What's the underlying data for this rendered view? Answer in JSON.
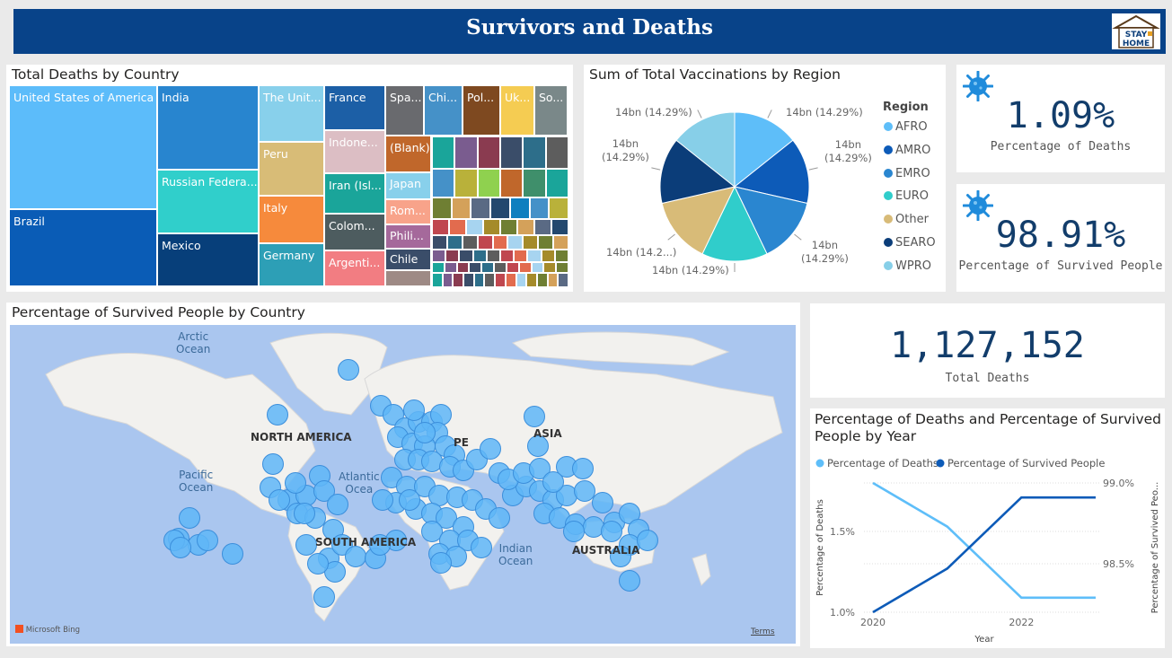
{
  "header": {
    "title": "Survivors and Deaths",
    "logo_text_1": "STAY",
    "logo_text_2": "HOME"
  },
  "colors": {
    "header": "#084389",
    "primary": "#118dff",
    "dark": "#12239e",
    "kpi_text": "#123d6b"
  },
  "treemap": {
    "title": "Total Deaths by Country",
    "labels": {
      "usa": "United States of America",
      "brazil": "Brazil",
      "india": "India",
      "russia": "Russian Federa...",
      "mexico": "Mexico",
      "uk": "The Unit...",
      "peru": "Peru",
      "italy": "Italy",
      "germany": "Germany",
      "france": "France",
      "indonesia": "Indone...",
      "iran": "Iran (Isl...",
      "colombia": "Colom...",
      "argentina": "Argenti...",
      "spain": "Spa...",
      "china": "Chi...",
      "poland": "Pol...",
      "ukraine": "Uk...",
      "southafrica": "So...",
      "blank": "(Blank)",
      "japan": "Japan",
      "romania": "Rom...",
      "philippines": "Phili...",
      "chile": "Chile"
    }
  },
  "pie": {
    "title": "Sum of Total Vaccinations by Region",
    "legend_title": "Region",
    "labels": {
      "afro": "14bn (14.29%)",
      "amro_1": "14bn",
      "amro_2": "(14.29%)",
      "emro_1": "14bn",
      "emro_2": "(14.29%)",
      "euro": "14bn (14.29%)",
      "other": "14bn (14.2...)",
      "searo_1": "14bn",
      "searo_2": "(14.29%)",
      "wpro": "14bn (14.29%)"
    }
  },
  "kpis": {
    "deaths_pct": {
      "value": "1.09%",
      "label": "Percentage of Deaths"
    },
    "survived_pct": {
      "value": "98.91%",
      "label": "Percentage of Survived People"
    },
    "total_deaths": {
      "value": "1,127,152",
      "label": "Total Deaths"
    }
  },
  "map": {
    "title": "Percentage of Survived People by Country",
    "labels": {
      "arctic_1": "Arctic",
      "arctic_2": "Ocean",
      "north_america": "NORTH AMERICA",
      "europe": "PE",
      "asia": "ASIA",
      "pacific_1": "Pacific",
      "pacific_2": "Ocean",
      "atlantic_1": "Atlantic",
      "atlantic_2": "Ocea",
      "south_america": "SOUTH AMERICA",
      "indian_1": "Indian",
      "indian_2": "Ocean",
      "australia": "AUSTRALIA",
      "bing": "Microsoft Bing",
      "terms": "Terms"
    }
  },
  "chart_data": [
    {
      "type": "treemap",
      "title": "Total Deaths by Country",
      "categories": [
        "United States of America",
        "Brazil",
        "India",
        "Russian Federa...",
        "Mexico",
        "The Unit...",
        "Peru",
        "Italy",
        "Germany",
        "France",
        "Indone...",
        "Iran (Isl...",
        "Colom...",
        "Argenti...",
        "Spa...",
        "Chi...",
        "Pol...",
        "Uk...",
        "So...",
        "(Blank)",
        "Japan",
        "Rom...",
        "Phili...",
        "Chile"
      ]
    },
    {
      "type": "pie",
      "title": "Sum of Total Vaccinations by Region",
      "legend_title": "Region",
      "legend_position": "right",
      "categories": [
        "AFRO",
        "AMRO",
        "EMRO",
        "EURO",
        "Other",
        "SEARO",
        "WPRO"
      ],
      "values": [
        14.29,
        14.29,
        14.29,
        14.29,
        14.29,
        14.29,
        14.29
      ],
      "colors": [
        "#5ebef9",
        "#0d5bb8",
        "#2a86d0",
        "#30cdcb",
        "#d8bb78",
        "#0b3d79",
        "#87cfe8"
      ]
    },
    {
      "type": "line",
      "title": "Percentage of Deaths and Percentage of Survived People by Year",
      "xlabel": "Year",
      "ylabel": "Percentage of Deaths",
      "ylabel_right": "Percentage of Survived Peo...",
      "legend_position": "top-left",
      "x": [
        2020,
        2021,
        2022,
        2023
      ],
      "x_ticks": [
        "2020",
        "2022"
      ],
      "y_ticks": [
        "1.0%",
        "1.5%"
      ],
      "y_ticks_right": [
        "98.5%",
        "99.0%"
      ],
      "ylim": [
        1.0,
        1.8
      ],
      "ylim_right": [
        98.2,
        99.0
      ],
      "series": [
        {
          "name": "Percentage of Deaths",
          "axis": "left",
          "color": "#5ebef9",
          "values": [
            1.8,
            1.53,
            1.09,
            1.09
          ]
        },
        {
          "name": "Percentage of Survived People",
          "axis": "right",
          "color": "#0d5bb8",
          "values": [
            98.2,
            98.47,
            98.91,
            98.91
          ]
        }
      ]
    }
  ]
}
